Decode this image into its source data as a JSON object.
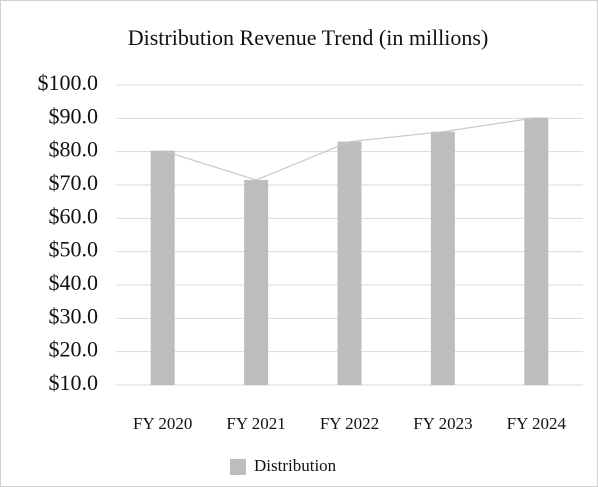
{
  "chart_data": {
    "type": "bar",
    "title": "Distribution Revenue Trend (in millions)",
    "categories": [
      "FY 2020",
      "FY 2021",
      "FY 2022",
      "FY 2023",
      "FY 2024"
    ],
    "series": [
      {
        "name": "Distribution",
        "color": "#bdbdbf",
        "values": [
          80.3,
          71.5,
          83,
          86,
          90.2
        ]
      }
    ],
    "line_overlay": true,
    "line_color": "#c8c8c8",
    "ylim": [
      10,
      100
    ],
    "yticks": [
      {
        "value": 10,
        "label": "$10.0"
      },
      {
        "value": 20,
        "label": "$20.0"
      },
      {
        "value": 30,
        "label": "$30.0"
      },
      {
        "value": 40,
        "label": "$40.0"
      },
      {
        "value": 50,
        "label": "$50.0"
      },
      {
        "value": 60,
        "label": "$60.0"
      },
      {
        "value": 70,
        "label": "$70.0"
      },
      {
        "value": 80,
        "label": "$80.0"
      },
      {
        "value": 90,
        "label": "$90.0"
      },
      {
        "value": 100,
        "label": "$100.0"
      }
    ],
    "grid": true,
    "legend": "bottom"
  }
}
